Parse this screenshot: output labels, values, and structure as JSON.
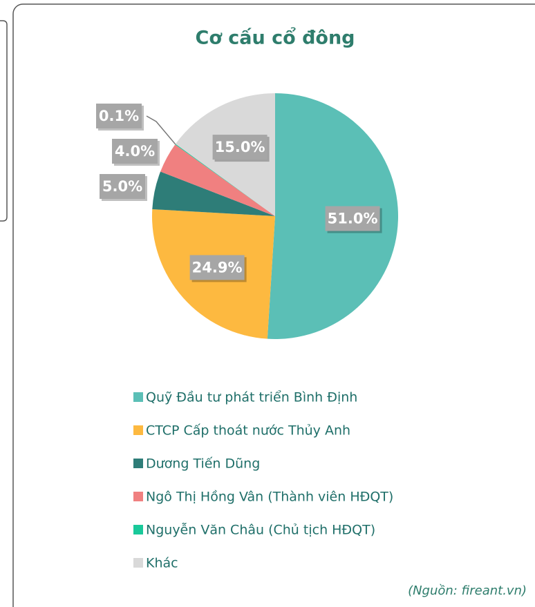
{
  "chart_data": {
    "type": "pie",
    "title": "Cơ cấu cổ đông",
    "categories": [
      "Quỹ Đầu tư phát triển Bình Định",
      "CTCP Cấp thoát nước Thủy Anh",
      "Dương Tiến Dũng",
      "Ngô Thị Hồng Vân (Thành viên HĐQT)",
      "Nguyễn Văn Châu (Chủ tịch HĐQT)",
      "Khác"
    ],
    "values": [
      51.0,
      24.9,
      5.0,
      4.0,
      0.1,
      15.0
    ],
    "value_labels": [
      "51.0%",
      "24.9%",
      "5.0%",
      "4.0%",
      "0.1%",
      "15.0%"
    ],
    "colors": [
      "#5bbfb6",
      "#fdb940",
      "#2e7d78",
      "#f08080",
      "#19c99a",
      "#d9d9d9"
    ],
    "legend": "bottom",
    "source": "(Nguồn: fireant.vn)"
  }
}
